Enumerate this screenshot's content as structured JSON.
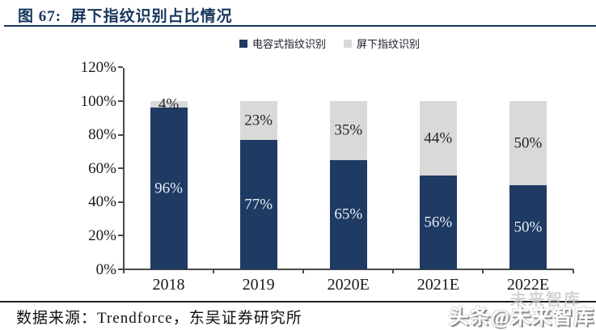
{
  "header": {
    "title": "图 67:  屏下指纹识别占比情况"
  },
  "footer": {
    "source": "数据来源：Trendforce，东吴证券研究所",
    "watermark": "头条@未来智库",
    "watermark_ghost": "未来智库"
  },
  "chart_data": {
    "type": "bar",
    "stacked": true,
    "title": "屏下指纹识别占比情况",
    "categories": [
      "2018",
      "2019",
      "2020E",
      "2021E",
      "2022E"
    ],
    "series": [
      {
        "name": "电容式指纹识别",
        "color": "#1f3a63",
        "label_color": "#e8edf5",
        "values": [
          96,
          77,
          65,
          56,
          50
        ]
      },
      {
        "name": "屏下指纹识别",
        "color": "#d9d9d9",
        "label_color": "#262626",
        "values": [
          4,
          23,
          35,
          44,
          50
        ]
      }
    ],
    "value_suffix": "%",
    "ylim": [
      0,
      120
    ],
    "ytick_step_pct": 20,
    "yticks": [
      "0%",
      "20%",
      "40%",
      "60%",
      "80%",
      "100%",
      "120%"
    ],
    "legend_position": "top",
    "grid": false
  }
}
